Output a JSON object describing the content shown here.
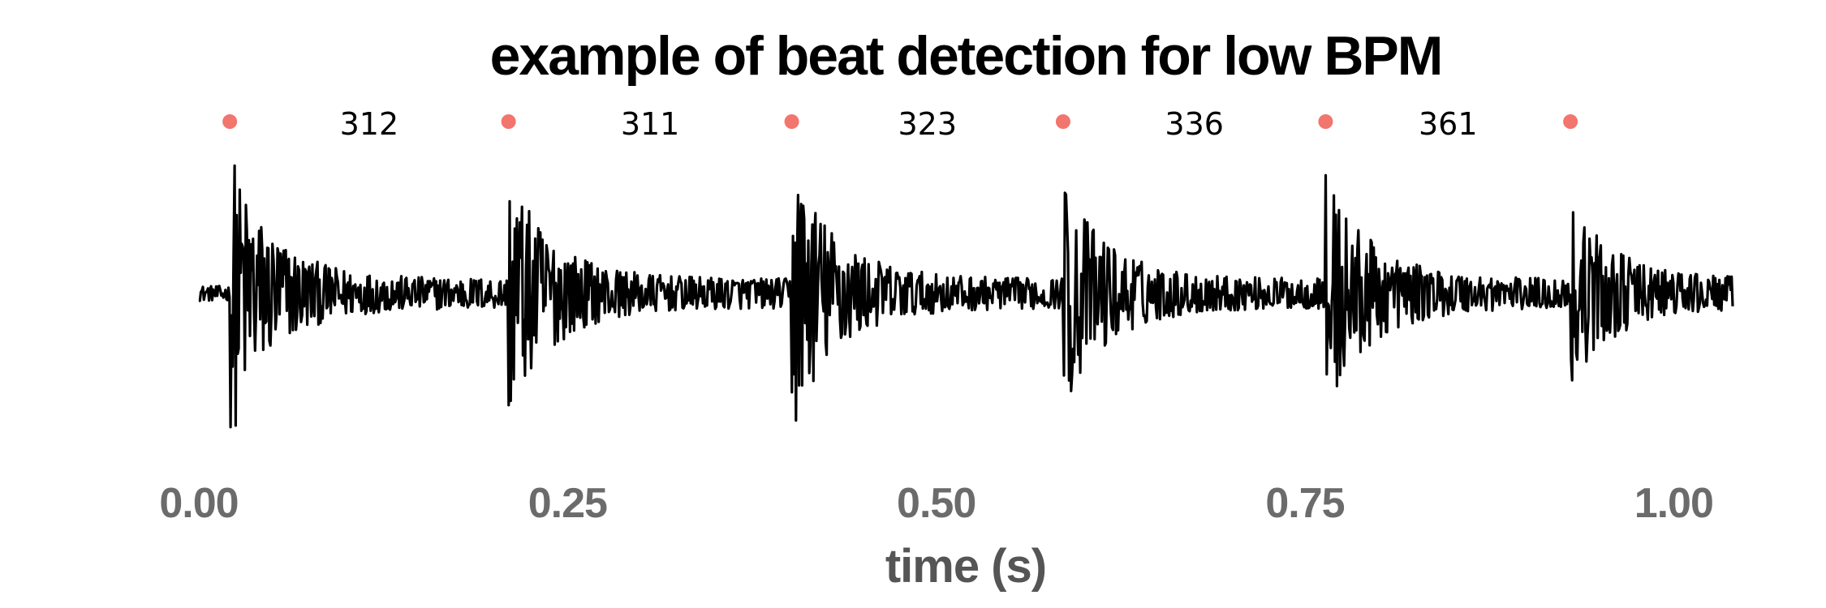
{
  "chart_data": {
    "type": "line",
    "title": "example of beat detection for low BPM",
    "xlabel": "time (s)",
    "ylabel": "",
    "xlim": [
      0.0,
      1.04
    ],
    "ylim": [
      -1.0,
      1.0
    ],
    "grid": false,
    "x_ticks": [
      {
        "value": 0.0,
        "label": "0.00"
      },
      {
        "value": 0.25,
        "label": "0.25"
      },
      {
        "value": 0.5,
        "label": "0.50"
      },
      {
        "value": 0.75,
        "label": "0.75"
      },
      {
        "value": 1.0,
        "label": "1.00"
      }
    ],
    "beats": [
      {
        "time": 0.021,
        "interval_to_next": "312"
      },
      {
        "time": 0.21,
        "interval_to_next": "311"
      },
      {
        "time": 0.402,
        "interval_to_next": "323"
      },
      {
        "time": 0.586,
        "interval_to_next": "336"
      },
      {
        "time": 0.764,
        "interval_to_next": "361"
      },
      {
        "time": 0.93
      }
    ],
    "series": [
      {
        "type": "waveform",
        "envelope_peaks": [
          0.9,
          0.82,
          0.92,
          0.78,
          0.82,
          0.62
        ],
        "tail_level": 0.1
      }
    ],
    "colors": {
      "waveform": "#000000",
      "beat_marker": "#F2756E",
      "tick_label": "#6b6b6b",
      "axis_label": "#555555",
      "title": "#000000"
    }
  }
}
